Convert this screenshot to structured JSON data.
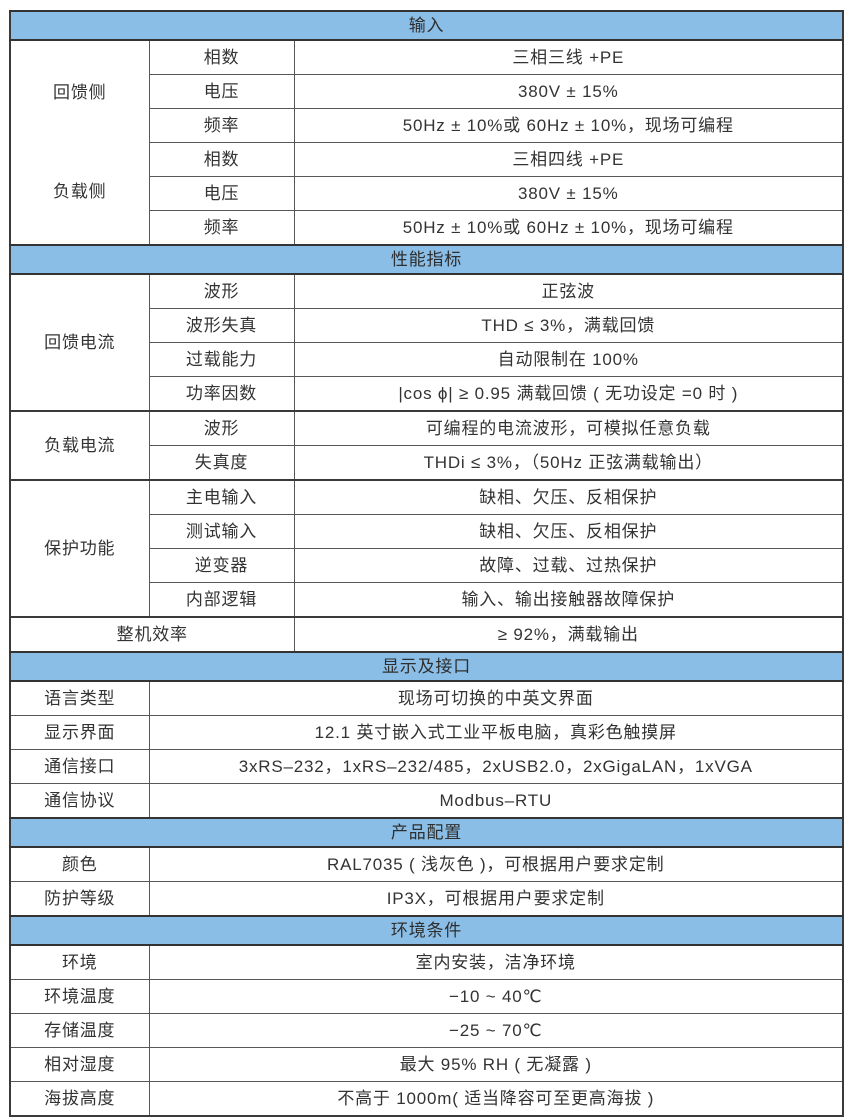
{
  "colors": {
    "section_header_bg": "#8BBEE7",
    "border_dark": "#3a3a3a",
    "border_inner": "#58585a",
    "text": "#333333",
    "row_bg": "#ffffff"
  },
  "sections": [
    {
      "title": "输入",
      "groups": [
        {
          "label": "回馈侧",
          "rows": [
            {
              "param": "相数",
              "value": "三相三线 +PE"
            },
            {
              "param": "电压",
              "value": "380V ± 15%"
            },
            {
              "param": "频率",
              "value": "50Hz ± 10%或 60Hz ± 10%，现场可编程"
            }
          ]
        },
        {
          "label": "负载侧",
          "rows": [
            {
              "param": "相数",
              "value": "三相四线 +PE"
            },
            {
              "param": "电压",
              "value": "380V ± 15%"
            },
            {
              "param": "频率",
              "value": "50Hz ± 10%或 60Hz ± 10%，现场可编程"
            }
          ]
        }
      ]
    },
    {
      "title": "性能指标",
      "groups": [
        {
          "label": "回馈电流",
          "rows": [
            {
              "param": "波形",
              "value": "正弦波"
            },
            {
              "param": "波形失真",
              "value": "THD ≤ 3%，满载回馈"
            },
            {
              "param": "过载能力",
              "value": "自动限制在 100%"
            },
            {
              "param": "功率因数",
              "value": "|cos ϕ| ≥ 0.95 满载回馈 ( 无功设定 =0 时 )"
            }
          ]
        },
        {
          "label": "负载电流",
          "rows": [
            {
              "param": "波形",
              "value": "可编程的电流波形，可模拟任意负载"
            },
            {
              "param": "失真度",
              "value": "THDi ≤ 3%，（50Hz 正弦满载输出）"
            }
          ]
        },
        {
          "label": "保护功能",
          "rows": [
            {
              "param": "主电输入",
              "value": "缺相、欠压、反相保护"
            },
            {
              "param": "测试输入",
              "value": "缺相、欠压、反相保护"
            },
            {
              "param": "逆变器",
              "value": "故障、过载、过热保护"
            },
            {
              "param": "内部逻辑",
              "value": "输入、输出接触器故障保护"
            }
          ]
        }
      ],
      "merged_row": {
        "param": "整机效率",
        "value": "≥ 92%，满载输出"
      }
    },
    {
      "title": "显示及接口",
      "rows": [
        {
          "param": "语言类型",
          "value": "现场可切换的中英文界面"
        },
        {
          "param": "显示界面",
          "value": "12.1 英寸嵌入式工业平板电脑，真彩色触摸屏"
        },
        {
          "param": "通信接口",
          "value": "3xRS–232，1xRS–232/485，2xUSB2.0，2xGigaLAN，1xVGA"
        },
        {
          "param": "通信协议",
          "value": "Modbus–RTU"
        }
      ]
    },
    {
      "title": "产品配置",
      "rows": [
        {
          "param": "颜色",
          "value": "RAL7035 ( 浅灰色 )，可根据用户要求定制"
        },
        {
          "param": "防护等级",
          "value": "IP3X，可根据用户要求定制"
        }
      ]
    },
    {
      "title": "环境条件",
      "rows": [
        {
          "param": "环境",
          "value": "室内安装，洁净环境"
        },
        {
          "param": "环境温度",
          "value": "−10 ~ 40℃"
        },
        {
          "param": "存储温度",
          "value": "−25 ~ 70℃"
        },
        {
          "param": "相对湿度",
          "value": "最大 95% RH ( 无凝露 )"
        },
        {
          "param": "海拔高度",
          "value": "不高于 1000m( 适当降容可至更高海拔 )"
        }
      ]
    }
  ]
}
